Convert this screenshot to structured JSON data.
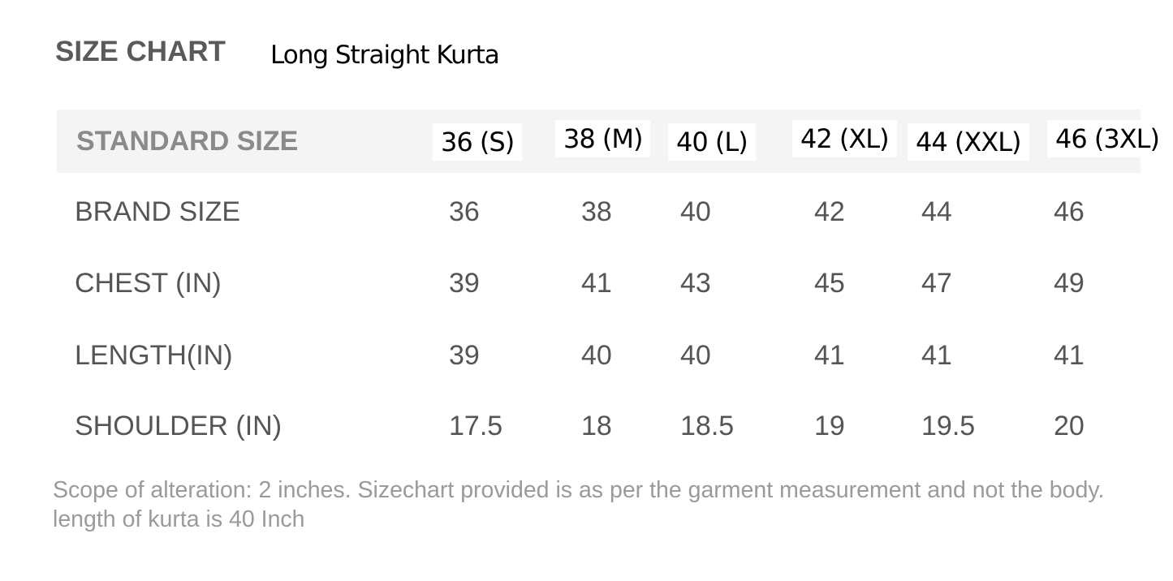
{
  "header": {
    "title": "SIZE CHART",
    "subtitle": "Long Straight Kurta"
  },
  "table": {
    "columns": [
      "STANDARD SIZE",
      "36 (S)",
      "38 (M)",
      "40 (L)",
      "42 (XL)",
      "44 (XXL)",
      "46 (3XL)"
    ],
    "rows": [
      [
        "BRAND SIZE",
        36,
        38,
        40,
        42,
        44,
        46
      ],
      [
        "CHEST (IN)",
        39,
        41,
        43,
        45,
        47,
        49
      ],
      [
        "LENGTH(IN)",
        39,
        40,
        40,
        41,
        41,
        41
      ],
      [
        "SHOULDER (IN)",
        17.5,
        18,
        18.5,
        19,
        19.5,
        20
      ]
    ]
  },
  "note": "Scope of alteration: 2 inches. Sizechart provided is as per the garment measurement and not the body. length of kurta is 40 Inch"
}
